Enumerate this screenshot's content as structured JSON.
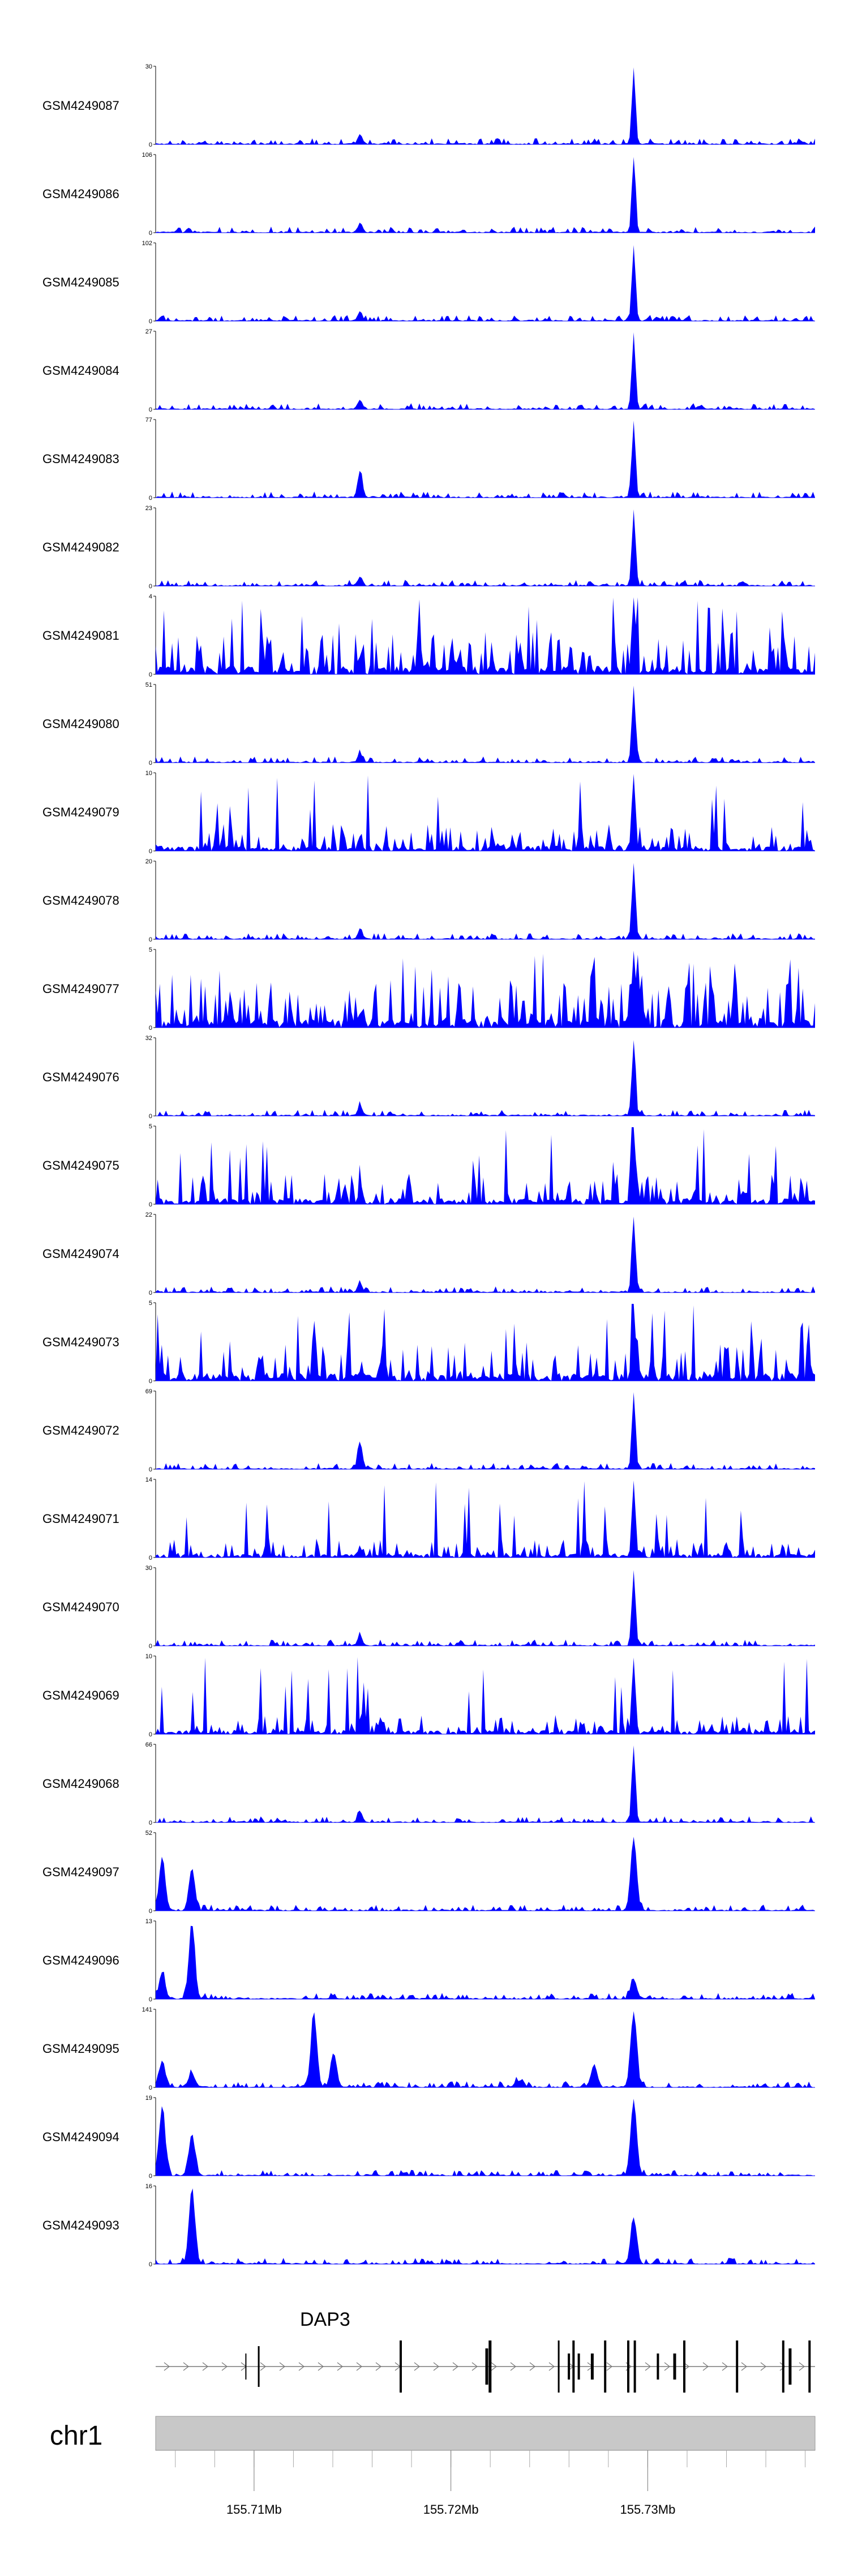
{
  "colors": {
    "signal": "#0000ff",
    "ideogram": "#c8c8c8",
    "axis": "#000000"
  },
  "chart_data": {
    "type": "area",
    "xlim": [
      155.705,
      155.7385
    ],
    "x_unit": "Mb",
    "tracks": [
      {
        "name": "GSM4249087",
        "ymax": 30,
        "ymin": 0
      },
      {
        "name": "GSM4249086",
        "ymax": 106,
        "ymin": 0
      },
      {
        "name": "GSM4249085",
        "ymax": 102,
        "ymin": 0
      },
      {
        "name": "GSM4249084",
        "ymax": 27,
        "ymin": 0
      },
      {
        "name": "GSM4249083",
        "ymax": 77,
        "ymin": 0
      },
      {
        "name": "GSM4249082",
        "ymax": 23,
        "ymin": 0
      },
      {
        "name": "GSM4249081",
        "ymax": 4,
        "ymin": 0
      },
      {
        "name": "GSM4249080",
        "ymax": 51,
        "ymin": 0
      },
      {
        "name": "GSM4249079",
        "ymax": 10,
        "ymin": 0
      },
      {
        "name": "GSM4249078",
        "ymax": 20,
        "ymin": 0
      },
      {
        "name": "GSM4249077",
        "ymax": 5,
        "ymin": 0
      },
      {
        "name": "GSM4249076",
        "ymax": 32,
        "ymin": 0
      },
      {
        "name": "GSM4249075",
        "ymax": 5,
        "ymin": 0
      },
      {
        "name": "GSM4249074",
        "ymax": 22,
        "ymin": 0
      },
      {
        "name": "GSM4249073",
        "ymax": 5,
        "ymin": 0
      },
      {
        "name": "GSM4249072",
        "ymax": 69,
        "ymin": 0
      },
      {
        "name": "GSM4249071",
        "ymax": 14,
        "ymin": 0
      },
      {
        "name": "GSM4249070",
        "ymax": 30,
        "ymin": 0
      },
      {
        "name": "GSM4249069",
        "ymax": 10,
        "ymin": 0
      },
      {
        "name": "GSM4249068",
        "ymax": 66,
        "ymin": 0
      },
      {
        "name": "GSM4249097",
        "ymax": 52,
        "ymin": 0
      },
      {
        "name": "GSM4249096",
        "ymax": 13,
        "ymin": 0
      },
      {
        "name": "GSM4249095",
        "ymax": 141,
        "ymin": 0
      },
      {
        "name": "GSM4249094",
        "ymax": 19,
        "ymin": 0
      },
      {
        "name": "GSM4249093",
        "ymax": 16,
        "ymin": 0
      }
    ],
    "gene": {
      "name": "DAP3",
      "strand": "+"
    },
    "chromosome": "chr1",
    "x_ticks": [
      {
        "value": 155.71,
        "label": "155.71Mb"
      },
      {
        "value": 155.72,
        "label": "155.72Mb"
      },
      {
        "value": 155.73,
        "label": "155.73Mb"
      }
    ]
  }
}
